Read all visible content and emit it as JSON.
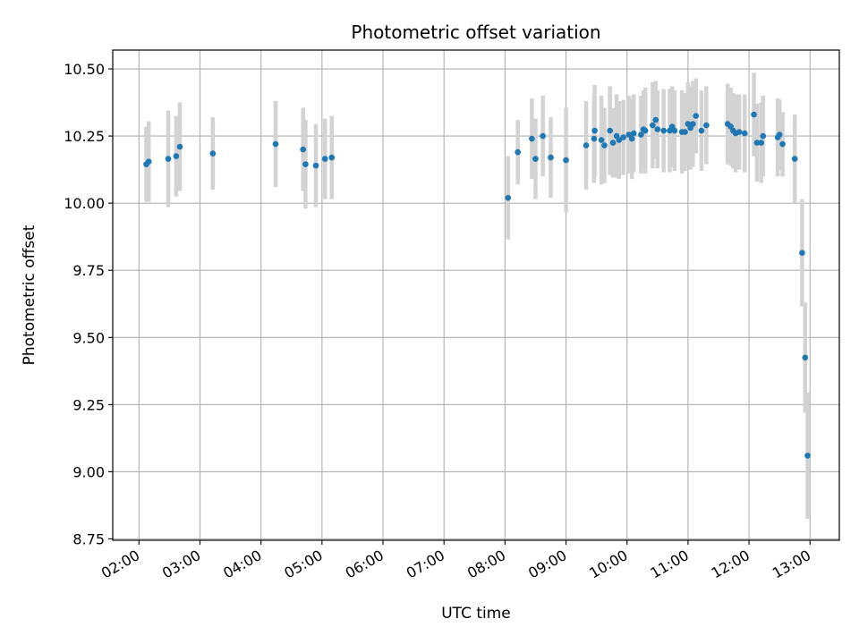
{
  "chart_data": {
    "type": "scatter",
    "title": "Photometric offset variation",
    "xlabel": "UTC time",
    "ylabel": "Photometric offset",
    "xlim_hours": [
      1.57,
      13.48
    ],
    "ylim": [
      8.745,
      10.57
    ],
    "grid": true,
    "x_ticks": [
      {
        "h": 2,
        "label": "02:00"
      },
      {
        "h": 3,
        "label": "03:00"
      },
      {
        "h": 4,
        "label": "04:00"
      },
      {
        "h": 5,
        "label": "05:00"
      },
      {
        "h": 6,
        "label": "06:00"
      },
      {
        "h": 7,
        "label": "07:00"
      },
      {
        "h": 8,
        "label": "08:00"
      },
      {
        "h": 9,
        "label": "09:00"
      },
      {
        "h": 10,
        "label": "10:00"
      },
      {
        "h": 11,
        "label": "11:00"
      },
      {
        "h": 12,
        "label": "12:00"
      },
      {
        "h": 13,
        "label": "13:00"
      }
    ],
    "y_ticks": [
      {
        "v": 8.75,
        "label": "8.75"
      },
      {
        "v": 9.0,
        "label": "9.00"
      },
      {
        "v": 9.25,
        "label": "9.25"
      },
      {
        "v": 9.5,
        "label": "9.50"
      },
      {
        "v": 9.75,
        "label": "9.75"
      },
      {
        "v": 10.0,
        "label": "10.00"
      },
      {
        "v": 10.25,
        "label": "10.25"
      },
      {
        "v": 10.5,
        "label": "10.50"
      }
    ],
    "colors": {
      "point": "#1f77b4",
      "errorbar": "#d3d3d3",
      "grid": "#b0b0b0",
      "axis": "#000000"
    },
    "series": [
      {
        "name": "Photometric offset",
        "points": [
          {
            "t": 2.12,
            "y": 10.145,
            "err": 0.14
          },
          {
            "t": 2.16,
            "y": 10.155,
            "err": 0.15
          },
          {
            "t": 2.48,
            "y": 10.165,
            "err": 0.18
          },
          {
            "t": 2.61,
            "y": 10.175,
            "err": 0.15
          },
          {
            "t": 2.67,
            "y": 10.21,
            "err": 0.165
          },
          {
            "t": 3.21,
            "y": 10.185,
            "err": 0.135
          },
          {
            "t": 4.24,
            "y": 10.22,
            "err": 0.16
          },
          {
            "t": 4.69,
            "y": 10.2,
            "err": 0.155
          },
          {
            "t": 4.73,
            "y": 10.145,
            "err": 0.165
          },
          {
            "t": 4.9,
            "y": 10.14,
            "err": 0.155
          },
          {
            "t": 5.05,
            "y": 10.165,
            "err": 0.15
          },
          {
            "t": 5.16,
            "y": 10.17,
            "err": 0.155
          },
          {
            "t": 8.05,
            "y": 10.02,
            "err": 0.155
          },
          {
            "t": 8.21,
            "y": 10.19,
            "err": 0.12
          },
          {
            "t": 8.44,
            "y": 10.24,
            "err": 0.15
          },
          {
            "t": 8.5,
            "y": 10.165,
            "err": 0.15
          },
          {
            "t": 8.62,
            "y": 10.25,
            "err": 0.15
          },
          {
            "t": 8.75,
            "y": 10.17,
            "err": 0.15
          },
          {
            "t": 9.0,
            "y": 10.16,
            "err": 0.195
          },
          {
            "t": 9.33,
            "y": 10.215,
            "err": 0.165
          },
          {
            "t": 9.46,
            "y": 10.24,
            "err": 0.165
          },
          {
            "t": 9.47,
            "y": 10.27,
            "err": 0.17
          },
          {
            "t": 9.58,
            "y": 10.235,
            "err": 0.165
          },
          {
            "t": 9.63,
            "y": 10.215,
            "err": 0.14
          },
          {
            "t": 9.72,
            "y": 10.27,
            "err": 0.165
          },
          {
            "t": 9.77,
            "y": 10.225,
            "err": 0.13
          },
          {
            "t": 9.83,
            "y": 10.25,
            "err": 0.155
          },
          {
            "t": 9.87,
            "y": 10.235,
            "err": 0.145
          },
          {
            "t": 9.94,
            "y": 10.245,
            "err": 0.14
          },
          {
            "t": 10.03,
            "y": 10.255,
            "err": 0.145
          },
          {
            "t": 10.08,
            "y": 10.24,
            "err": 0.15
          },
          {
            "t": 10.11,
            "y": 10.26,
            "err": 0.145
          },
          {
            "t": 10.23,
            "y": 10.255,
            "err": 0.145
          },
          {
            "t": 10.27,
            "y": 10.275,
            "err": 0.145
          },
          {
            "t": 10.3,
            "y": 10.27,
            "err": 0.16
          },
          {
            "t": 10.42,
            "y": 10.29,
            "err": 0.16
          },
          {
            "t": 10.47,
            "y": 10.31,
            "err": 0.145
          },
          {
            "t": 10.5,
            "y": 10.275,
            "err": 0.145
          },
          {
            "t": 10.6,
            "y": 10.27,
            "err": 0.155
          },
          {
            "t": 10.7,
            "y": 10.27,
            "err": 0.155
          },
          {
            "t": 10.74,
            "y": 10.285,
            "err": 0.15
          },
          {
            "t": 10.78,
            "y": 10.27,
            "err": 0.15
          },
          {
            "t": 10.9,
            "y": 10.265,
            "err": 0.155
          },
          {
            "t": 10.95,
            "y": 10.265,
            "err": 0.145
          },
          {
            "t": 11.0,
            "y": 10.295,
            "err": 0.155
          },
          {
            "t": 11.04,
            "y": 10.28,
            "err": 0.155
          },
          {
            "t": 11.08,
            "y": 10.295,
            "err": 0.16
          },
          {
            "t": 11.13,
            "y": 10.325,
            "err": 0.14
          },
          {
            "t": 11.22,
            "y": 10.27,
            "err": 0.15
          },
          {
            "t": 11.3,
            "y": 10.29,
            "err": 0.145
          },
          {
            "t": 11.65,
            "y": 10.295,
            "err": 0.15
          },
          {
            "t": 11.7,
            "y": 10.285,
            "err": 0.145
          },
          {
            "t": 11.74,
            "y": 10.27,
            "err": 0.14
          },
          {
            "t": 11.78,
            "y": 10.26,
            "err": 0.145
          },
          {
            "t": 11.84,
            "y": 10.265,
            "err": 0.14
          },
          {
            "t": 11.93,
            "y": 10.26,
            "err": 0.145
          },
          {
            "t": 12.08,
            "y": 10.33,
            "err": 0.155
          },
          {
            "t": 12.13,
            "y": 10.225,
            "err": 0.145
          },
          {
            "t": 12.2,
            "y": 10.225,
            "err": 0.15
          },
          {
            "t": 12.23,
            "y": 10.25,
            "err": 0.15
          },
          {
            "t": 12.47,
            "y": 10.245,
            "err": 0.145
          },
          {
            "t": 12.5,
            "y": 10.255,
            "err": 0.13
          },
          {
            "t": 12.55,
            "y": 10.22,
            "err": 0.12
          },
          {
            "t": 12.75,
            "y": 10.165,
            "err": 0.165
          },
          {
            "t": 12.87,
            "y": 9.815,
            "err": 0.2
          },
          {
            "t": 12.92,
            "y": 9.425,
            "err": 0.205
          },
          {
            "t": 12.96,
            "y": 9.06,
            "err": 0.235
          }
        ]
      }
    ]
  }
}
